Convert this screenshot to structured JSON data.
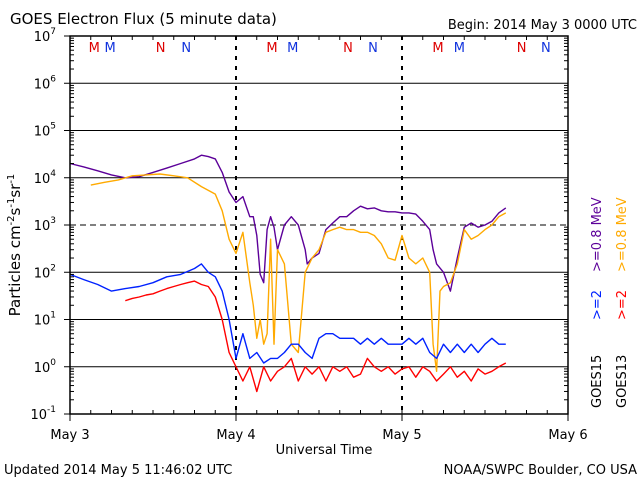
{
  "chart_data": {
    "type": "line",
    "title": "GOES Electron Flux (5 minute data)",
    "begin_label": "Begin: 2014 May 3 0000 UTC",
    "xlabel": "Universal Time",
    "ylabel_parts": [
      "Particles cm",
      "-2",
      "s",
      "-1",
      "sr",
      "-1"
    ],
    "y_scale": "log",
    "ylim": [
      0.1,
      10000000
    ],
    "y_ticks": [
      {
        "value": 0.1,
        "base": "10",
        "exp": "-1"
      },
      {
        "value": 1,
        "base": "10",
        "exp": "0"
      },
      {
        "value": 10,
        "base": "10",
        "exp": "1"
      },
      {
        "value": 100,
        "base": "10",
        "exp": "2"
      },
      {
        "value": 1000,
        "base": "10",
        "exp": "3"
      },
      {
        "value": 10000,
        "base": "10",
        "exp": "4"
      },
      {
        "value": 100000,
        "base": "10",
        "exp": "5"
      },
      {
        "value": 1000000,
        "base": "10",
        "exp": "6"
      },
      {
        "value": 10000000,
        "base": "10",
        "exp": "7"
      }
    ],
    "x_units": "hours since begin",
    "xlim": [
      0,
      72
    ],
    "x_ticks": [
      {
        "value": 0,
        "label": "May 3"
      },
      {
        "value": 24,
        "label": "May 4"
      },
      {
        "value": 48,
        "label": "May 5"
      },
      {
        "value": 72,
        "label": "May 6"
      }
    ],
    "threshold_line": 1000,
    "grid": true,
    "markers": [
      {
        "label": "M",
        "x": 3.5,
        "color": "#dd0000"
      },
      {
        "label": "M",
        "x": 5.8,
        "color": "#1133dd"
      },
      {
        "label": "N",
        "x": 13.1,
        "color": "#dd0000"
      },
      {
        "label": "N",
        "x": 16.8,
        "color": "#1133dd"
      },
      {
        "label": "M",
        "x": 29.2,
        "color": "#dd0000"
      },
      {
        "label": "M",
        "x": 32.2,
        "color": "#1133dd"
      },
      {
        "label": "N",
        "x": 40.2,
        "color": "#dd0000"
      },
      {
        "label": "N",
        "x": 43.8,
        "color": "#1133dd"
      },
      {
        "label": "M",
        "x": 53.2,
        "color": "#dd0000"
      },
      {
        "label": "M",
        "x": 56.3,
        "color": "#1133dd"
      },
      {
        "label": "N",
        "x": 65.3,
        "color": "#dd0000"
      },
      {
        "label": "N",
        "x": 68.8,
        "color": "#1133dd"
      }
    ],
    "noon_ticks": [
      24,
      48
    ],
    "series": [
      {
        "name": "GOES15 >=0.8 MeV",
        "color": "#5c0099",
        "x": [
          0,
          2,
          4,
          6,
          8,
          10,
          12,
          14,
          16,
          18,
          19,
          20,
          21,
          22,
          23,
          24,
          25,
          26,
          26.5,
          27,
          27.5,
          28,
          28.5,
          29,
          29.5,
          30,
          31,
          32,
          33,
          34,
          34.3,
          35,
          36,
          37,
          38,
          39,
          40,
          41,
          42,
          43,
          44,
          45,
          46,
          47,
          48,
          49,
          50,
          51,
          52,
          52.5,
          53,
          54,
          55,
          56,
          57,
          58,
          59,
          60,
          61,
          62,
          63
        ],
        "y": [
          20000,
          17000,
          14000,
          11500,
          10000,
          10500,
          13000,
          16000,
          20000,
          25000,
          30000,
          28000,
          25000,
          13000,
          5000,
          3000,
          4000,
          1500,
          1500,
          600,
          90,
          60,
          800,
          1500,
          900,
          300,
          1000,
          1500,
          1000,
          300,
          150,
          200,
          250,
          800,
          1100,
          1500,
          1500,
          2000,
          2500,
          2200,
          2300,
          2000,
          1900,
          1900,
          1800,
          1800,
          1700,
          1200,
          800,
          300,
          150,
          100,
          40,
          200,
          900,
          1100,
          900,
          1000,
          1200,
          1800,
          2300
        ]
      },
      {
        "name": "GOES13 >=0.8 MeV",
        "color": "#ffaa00",
        "x": [
          3,
          5,
          7,
          9,
          11,
          13,
          15,
          17,
          19,
          21,
          22,
          23,
          24,
          25,
          26,
          26.5,
          27,
          27.5,
          28,
          28.5,
          29,
          29.5,
          30,
          31,
          32,
          33,
          34,
          35,
          36,
          37,
          38,
          39,
          40,
          41,
          42,
          43,
          44,
          45,
          46,
          47,
          48,
          49,
          50,
          51,
          52,
          52.5,
          53,
          53.5,
          54,
          55,
          56,
          57,
          58,
          59,
          60,
          61,
          62,
          63
        ],
        "y": [
          7000,
          8000,
          9000,
          11000,
          11500,
          12000,
          11000,
          10000,
          6500,
          4500,
          2000,
          500,
          250,
          700,
          60,
          20,
          4,
          10,
          3,
          5,
          500,
          3,
          300,
          150,
          3,
          2,
          100,
          200,
          300,
          700,
          800,
          900,
          800,
          800,
          700,
          700,
          600,
          400,
          200,
          180,
          600,
          200,
          150,
          200,
          100,
          3,
          0.8,
          40,
          50,
          60,
          150,
          800,
          500,
          600,
          800,
          1000,
          1500,
          1800
        ]
      },
      {
        "name": "GOES15 >=2 MeV",
        "color": "#0022ff",
        "x": [
          0,
          2,
          4,
          6,
          8,
          10,
          12,
          14,
          16,
          18,
          19,
          20,
          21,
          22,
          23,
          24,
          25,
          26,
          27,
          28,
          29,
          30,
          31,
          32,
          33,
          34,
          35,
          36,
          37,
          38,
          39,
          40,
          41,
          42,
          43,
          44,
          45,
          46,
          47,
          48,
          49,
          50,
          51,
          52,
          53,
          54,
          55,
          56,
          57,
          58,
          59,
          60,
          61,
          62,
          63
        ],
        "y": [
          90,
          70,
          55,
          40,
          45,
          50,
          60,
          80,
          90,
          120,
          150,
          100,
          80,
          40,
          10,
          1.5,
          5,
          1.5,
          2,
          1.2,
          1.5,
          1.5,
          2,
          3,
          3,
          2,
          1.5,
          4,
          5,
          5,
          4,
          4,
          4,
          3,
          4,
          3,
          4,
          3,
          3,
          3,
          4,
          3,
          4,
          2,
          1.5,
          3,
          2,
          3,
          2,
          3,
          2,
          3,
          4,
          3,
          3
        ]
      },
      {
        "name": "GOES13 >=2 MeV",
        "color": "#ff0000",
        "x": [
          8,
          9,
          10,
          11,
          12,
          13,
          14,
          15,
          16,
          17,
          18,
          19,
          20,
          21,
          22,
          23,
          24,
          25,
          26,
          27,
          28,
          29,
          30,
          31,
          32,
          33,
          34,
          35,
          36,
          37,
          38,
          39,
          40,
          41,
          42,
          43,
          44,
          45,
          46,
          47,
          48,
          49,
          50,
          51,
          52,
          53,
          54,
          55,
          56,
          57,
          58,
          59,
          60,
          61,
          62,
          63
        ],
        "y": [
          25,
          28,
          30,
          33,
          35,
          40,
          45,
          50,
          55,
          60,
          65,
          55,
          50,
          30,
          10,
          2,
          1,
          0.5,
          1,
          0.3,
          1,
          0.5,
          0.8,
          1,
          1.5,
          0.5,
          1,
          0.7,
          1,
          0.5,
          1,
          0.8,
          1,
          0.6,
          0.7,
          1.5,
          1,
          0.8,
          1,
          0.7,
          0.9,
          1,
          0.6,
          1,
          0.8,
          0.5,
          0.7,
          1,
          0.6,
          0.8,
          0.5,
          0.9,
          0.7,
          0.8,
          1,
          1.2
        ]
      }
    ],
    "right_labels": [
      {
        "energy": ">=0.8 MeV",
        "name": "GOES15",
        "color": "#5c0099"
      },
      {
        "energy": ">=0.8 MeV",
        "name": "GOES13",
        "color": "#ffaa00"
      },
      {
        "energy": ">=2",
        "name": "GOES15",
        "color": "#0022ff"
      },
      {
        "energy": ">=2",
        "name": "GOES13",
        "color": "#ff0000"
      }
    ],
    "footer_left": "Updated 2014 May  5 11:46:02 UTC",
    "footer_right": "NOAA/SWPC Boulder, CO USA"
  }
}
